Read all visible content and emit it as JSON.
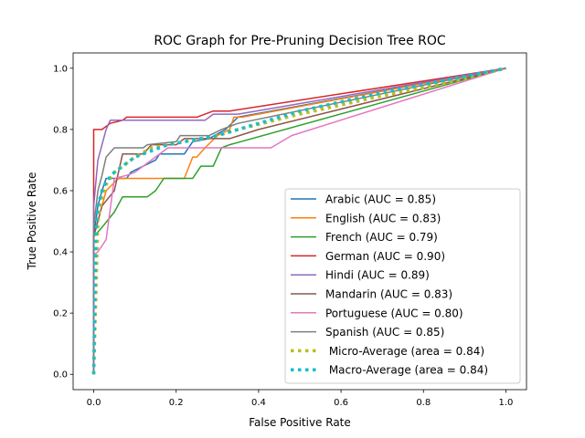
{
  "chart_data": {
    "type": "line",
    "title": "ROC Graph for Pre-Pruning Decision Tree ROC",
    "xlabel": "False Positive Rate",
    "ylabel": "True Positive Rate",
    "xlim": [
      -0.05,
      1.05
    ],
    "ylim": [
      -0.05,
      1.05
    ],
    "xticks": [
      "0.0",
      "0.2",
      "0.4",
      "0.6",
      "0.8",
      "1.0"
    ],
    "yticks": [
      "0.0",
      "0.2",
      "0.4",
      "0.6",
      "0.8",
      "1.0"
    ],
    "xtick_values": [
      0,
      0.2,
      0.4,
      0.6,
      0.8,
      1.0
    ],
    "ytick_values": [
      0,
      0.2,
      0.4,
      0.6,
      0.8,
      1.0
    ],
    "grid": false,
    "legend_position": "lower-right",
    "series": [
      {
        "name": "Arabic (AUC = 0.85)",
        "color": "#1f77b4",
        "style": "solid",
        "x": [
          0,
          0,
          0.01,
          0.02,
          0.03,
          0.05,
          0.08,
          0.09,
          0.12,
          0.15,
          0.16,
          0.2,
          0.22,
          0.24,
          0.28,
          0.32,
          0.35,
          1
        ],
        "y": [
          0,
          0.45,
          0.55,
          0.6,
          0.64,
          0.64,
          0.64,
          0.66,
          0.68,
          0.7,
          0.72,
          0.72,
          0.72,
          0.76,
          0.77,
          0.8,
          0.84,
          1
        ]
      },
      {
        "name": "English (AUC = 0.83)",
        "color": "#ff7f0e",
        "style": "solid",
        "x": [
          0,
          0,
          0.01,
          0.03,
          0.06,
          0.1,
          0.2,
          0.22,
          0.24,
          0.25,
          0.27,
          0.3,
          0.33,
          0.34,
          0.36,
          1
        ],
        "y": [
          0,
          0.45,
          0.5,
          0.6,
          0.64,
          0.64,
          0.64,
          0.64,
          0.71,
          0.71,
          0.74,
          0.78,
          0.8,
          0.84,
          0.84,
          1
        ]
      },
      {
        "name": "French (AUC = 0.79)",
        "color": "#2ca02c",
        "style": "solid",
        "x": [
          0,
          0,
          0.02,
          0.05,
          0.07,
          0.13,
          0.15,
          0.17,
          0.23,
          0.24,
          0.26,
          0.29,
          0.31,
          0.33,
          1
        ],
        "y": [
          0,
          0.45,
          0.48,
          0.53,
          0.58,
          0.58,
          0.6,
          0.64,
          0.64,
          0.64,
          0.68,
          0.68,
          0.74,
          0.75,
          1
        ]
      },
      {
        "name": "German (AUC = 0.90)",
        "color": "#d62728",
        "style": "solid",
        "x": [
          0,
          0,
          0.02,
          0.02,
          0.04,
          0.07,
          0.08,
          0.1,
          0.25,
          0.29,
          0.33,
          1
        ],
        "y": [
          0,
          0.8,
          0.8,
          0.8,
          0.82,
          0.83,
          0.84,
          0.84,
          0.84,
          0.86,
          0.86,
          1
        ]
      },
      {
        "name": "Hindi (AUC = 0.89)",
        "color": "#9467bd",
        "style": "solid",
        "x": [
          0,
          0,
          0.01,
          0.02,
          0.03,
          0.04,
          0.05,
          0.07,
          0.27,
          0.29,
          0.35,
          1
        ],
        "y": [
          0,
          0.55,
          0.7,
          0.75,
          0.8,
          0.83,
          0.83,
          0.83,
          0.83,
          0.85,
          0.85,
          1
        ]
      },
      {
        "name": "Mandarin (AUC = 0.83)",
        "color": "#8c564b",
        "style": "solid",
        "x": [
          0,
          0,
          0.02,
          0.05,
          0.07,
          0.09,
          0.12,
          0.14,
          0.2,
          0.22,
          0.3,
          0.33,
          0.4,
          1
        ],
        "y": [
          0,
          0.45,
          0.55,
          0.6,
          0.72,
          0.72,
          0.72,
          0.75,
          0.75,
          0.77,
          0.77,
          0.77,
          0.8,
          1
        ]
      },
      {
        "name": "Portuguese (AUC = 0.80)",
        "color": "#e377c2",
        "style": "solid",
        "x": [
          0,
          0,
          0.01,
          0.03,
          0.05,
          0.08,
          0.1,
          0.14,
          0.18,
          0.25,
          0.3,
          0.35,
          0.43,
          0.48,
          1
        ],
        "y": [
          0,
          0.39,
          0.4,
          0.44,
          0.64,
          0.65,
          0.66,
          0.7,
          0.74,
          0.74,
          0.74,
          0.74,
          0.74,
          0.78,
          1
        ]
      },
      {
        "name": "Spanish (AUC = 0.85)",
        "color": "#7f7f7f",
        "style": "solid",
        "x": [
          0,
          0,
          0.01,
          0.02,
          0.03,
          0.05,
          0.12,
          0.13,
          0.2,
          0.21,
          0.28,
          0.31,
          0.35,
          1
        ],
        "y": [
          0,
          0.48,
          0.6,
          0.65,
          0.71,
          0.74,
          0.74,
          0.75,
          0.76,
          0.78,
          0.78,
          0.8,
          0.82,
          1
        ]
      },
      {
        "name": " Micro-Average (area = 0.84)",
        "color": "#bcbd22",
        "style": "dotted",
        "x": [
          0,
          0.01,
          0.02,
          0.03,
          0.05,
          0.08,
          0.1,
          0.14,
          0.18,
          0.22,
          0.3,
          0.35,
          0.5,
          0.7,
          0.85,
          1
        ],
        "y": [
          0,
          0.5,
          0.58,
          0.62,
          0.66,
          0.69,
          0.71,
          0.74,
          0.75,
          0.76,
          0.78,
          0.8,
          0.85,
          0.91,
          0.95,
          1
        ]
      },
      {
        "name": " Macro-Average (area = 0.84)",
        "color": "#17becf",
        "style": "dotted",
        "x": [
          0,
          0.005,
          0.01,
          0.02,
          0.03,
          0.05,
          0.08,
          0.1,
          0.14,
          0.18,
          0.22,
          0.3,
          0.35,
          0.5,
          0.7,
          0.85,
          1
        ],
        "y": [
          0,
          0.45,
          0.55,
          0.6,
          0.63,
          0.66,
          0.69,
          0.71,
          0.73,
          0.75,
          0.76,
          0.78,
          0.8,
          0.86,
          0.92,
          0.96,
          1
        ]
      }
    ]
  }
}
